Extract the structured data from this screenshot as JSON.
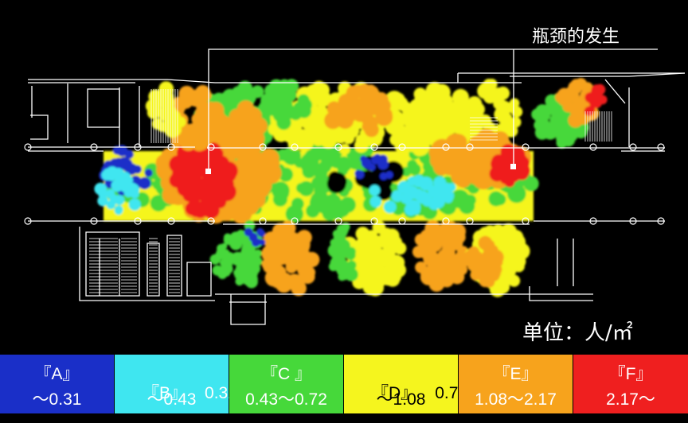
{
  "annotation": {
    "bottleneck": "瓶颈的发生",
    "unit": "单位：人/㎡"
  },
  "legend": [
    {
      "name": "『A』",
      "range_line1": "",
      "range_line2": "～0.31",
      "color": "#1a2fc8"
    },
    {
      "name": "『B』",
      "range_line1": "0.31",
      "range_line2": "～0.43",
      "color": "#3fe6f0"
    },
    {
      "name": "『C 』",
      "range_line1": "",
      "range_line2": "0.43～0.72",
      "color": "#46d83a"
    },
    {
      "name": "『D』",
      "range_line1": "0.72",
      "range_line2": "～1.08",
      "color": "#f5f51e"
    },
    {
      "name": "『E』",
      "range_line1": "",
      "range_line2": "1.08～2.17",
      "color": "#f7a31c"
    },
    {
      "name": "『F』",
      "range_line1": "",
      "range_line2": "2.17～",
      "color": "#ef1f1f"
    }
  ]
}
